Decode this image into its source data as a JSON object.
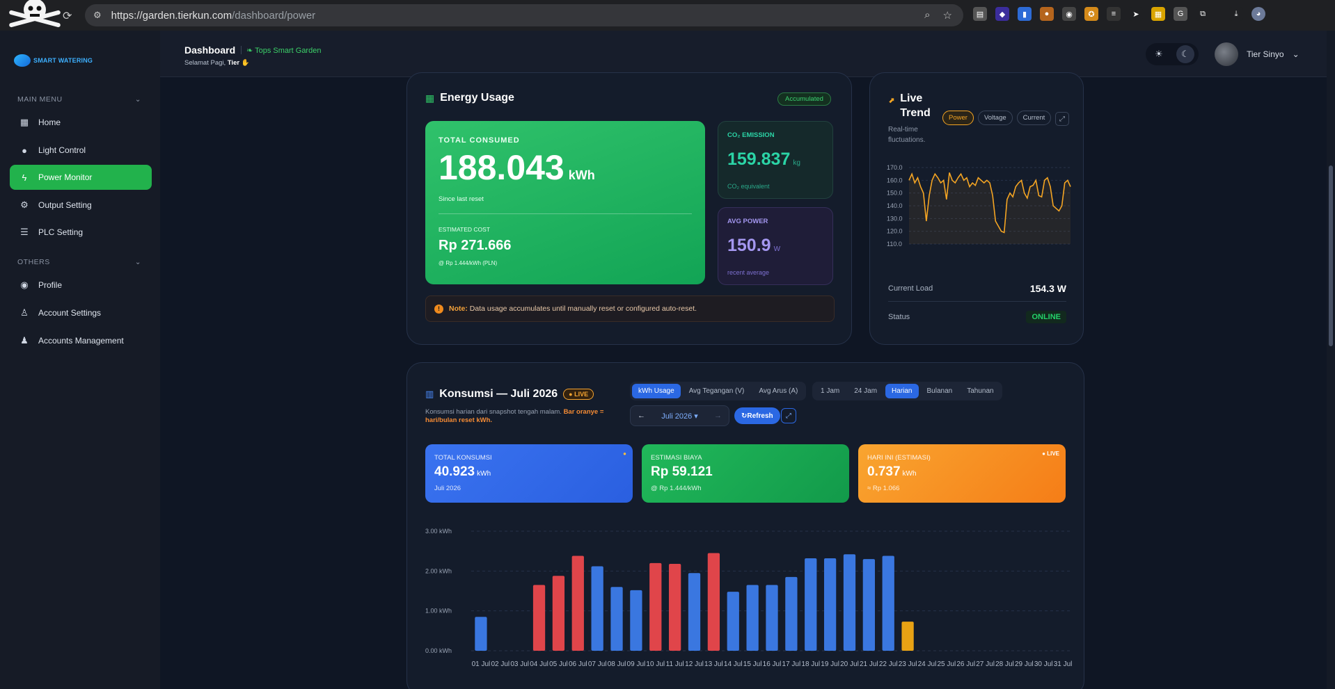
{
  "browser": {
    "url_host": "https://garden.tierkun.com",
    "url_path": "/dashboard/power"
  },
  "sidebar": {
    "brand": "SMART WATERING",
    "main_menu_label": "MAIN MENU",
    "others_label": "OTHERS",
    "items": [
      {
        "label": "Home",
        "icon": "dashboard-icon"
      },
      {
        "label": "Light Control",
        "icon": "bulb-icon"
      },
      {
        "label": "Power Monitor",
        "icon": "bolt-icon"
      },
      {
        "label": "Output Setting",
        "icon": "gear-icon"
      },
      {
        "label": "PLC Setting",
        "icon": "list-icon"
      },
      {
        "label": "Profile",
        "icon": "user-icon"
      },
      {
        "label": "Account Settings",
        "icon": "user-gear-icon"
      },
      {
        "label": "Accounts Management",
        "icon": "users-icon"
      }
    ]
  },
  "header": {
    "title": "Dashboard",
    "subtitle": "Tops Smart Garden",
    "greeting_prefix": "Selamat Pagi,",
    "greeting_name": "Tier",
    "username": "Tier Sinyo"
  },
  "energy": {
    "title": "Energy Usage",
    "badge": "Accumulated",
    "total_label": "TOTAL CONSUMED",
    "total_value": "188.043",
    "total_unit": "kWh",
    "since": "Since last reset",
    "cost_label": "ESTIMATED COST",
    "cost_value": "Rp 271.666",
    "cost_rate": "@ Rp 1.444/kWh (PLN)",
    "co2_label": "CO₂ EMISSION",
    "co2_value": "159.837",
    "co2_unit": "kg",
    "co2_note": "CO₂ equivalent",
    "avg_label": "AVG POWER",
    "avg_value": "150.9",
    "avg_unit": "W",
    "avg_note": "recent average",
    "note_label": "Note:",
    "note_text": "Data usage accumulates until manually reset or configured auto-reset."
  },
  "live": {
    "title": "Live Trend",
    "subtitle": "Real-time fluctuations.",
    "tabs": [
      "Power",
      "Voltage",
      "Current"
    ],
    "current_load_label": "Current Load",
    "current_load_value": "154.3 W",
    "status_label": "Status",
    "status_value": "ONLINE",
    "color": "#f5a523"
  },
  "konsumsi": {
    "title": "Konsumsi — Juli 2026",
    "live_badge": "LIVE",
    "desc": "Konsumsi harian dari snapshot tengah malam.",
    "desc_highlight": "Bar oranye = hari/bulan reset kWh.",
    "metric_tabs": [
      "kWh Usage",
      "Avg Tegangan (V)",
      "Avg Arus (A)"
    ],
    "range_tabs": [
      "1 Jam",
      "24 Jam",
      "Harian",
      "Bulanan",
      "Tahunan"
    ],
    "month": "Juli 2026",
    "refresh": "↻Refresh",
    "stats": {
      "total_label": "TOTAL KONSUMSI",
      "total_value": "40.923",
      "total_unit": "kWh",
      "total_note": "Juli 2026",
      "biaya_label": "ESTIMASI BIAYA",
      "biaya_value": "Rp 59.121",
      "biaya_note": "@ Rp 1.444/kWh",
      "hari_label": "HARI INI (ESTIMASI)",
      "hari_badge": "● LIVE",
      "hari_value": "0.737",
      "hari_unit": "kWh",
      "hari_note": "≈ Rp 1.066"
    }
  },
  "chart_data": [
    {
      "type": "line",
      "title": "Live Trend",
      "series": [
        {
          "name": "Power",
          "values": [
            160,
            165,
            158,
            162,
            155,
            150,
            128,
            148,
            160,
            165,
            162,
            158,
            160,
            145,
            166,
            160,
            158,
            162,
            165,
            160,
            162,
            155,
            158,
            156,
            162,
            160,
            158,
            160,
            158,
            148,
            128,
            124,
            120,
            119,
            145,
            150,
            147,
            155,
            158,
            160,
            150,
            146,
            155,
            156,
            160,
            148,
            147,
            160,
            162,
            155,
            140,
            138,
            136,
            140,
            158,
            160,
            155
          ]
        }
      ],
      "ylim": [
        110,
        170
      ],
      "yticks": [
        "170.0",
        "160.0",
        "150.0",
        "140.0",
        "130.0",
        "120.0",
        "110.0"
      ]
    },
    {
      "type": "bar",
      "title": "Konsumsi — Juli 2026",
      "categories": [
        "01 Jul",
        "02 Jul",
        "03 Jul",
        "04 Jul",
        "05 Jul",
        "06 Jul",
        "07 Jul",
        "08 Jul",
        "09 Jul",
        "10 Jul",
        "11 Jul",
        "12 Jul",
        "13 Jul",
        "14 Jul",
        "15 Jul",
        "16 Jul",
        "17 Jul",
        "18 Jul",
        "19 Jul",
        "20 Jul",
        "21 Jul",
        "22 Jul",
        "23 Jul",
        "24 Jul",
        "25 Jul",
        "26 Jul",
        "27 Jul",
        "28 Jul",
        "29 Jul",
        "30 Jul",
        "31 Jul"
      ],
      "values": [
        0.85,
        0,
        0,
        1.65,
        1.88,
        2.38,
        2.12,
        1.6,
        1.52,
        2.2,
        2.18,
        1.95,
        2.45,
        1.48,
        1.65,
        1.65,
        1.85,
        2.32,
        2.32,
        2.42,
        2.3,
        2.38,
        0.73,
        0,
        0,
        0,
        0,
        0,
        0,
        0,
        0
      ],
      "bar_colors": [
        "#3a77e0",
        "#3a77e0",
        "#3a77e0",
        "#e0454a",
        "#e0454a",
        "#e0454a",
        "#3a77e0",
        "#3a77e0",
        "#3a77e0",
        "#e0454a",
        "#e0454a",
        "#3a77e0",
        "#e0454a",
        "#3a77e0",
        "#3a77e0",
        "#3a77e0",
        "#3a77e0",
        "#3a77e0",
        "#3a77e0",
        "#3a77e0",
        "#3a77e0",
        "#3a77e0",
        "#e8a214",
        "#3a77e0",
        "#3a77e0",
        "#3a77e0",
        "#3a77e0",
        "#3a77e0",
        "#3a77e0",
        "#3a77e0",
        "#3a77e0"
      ],
      "xtick_labels": [
        "01 Jul",
        "02 Jul",
        "03 Jul",
        "04 Jul",
        "05 Jul",
        "06 Jul",
        "07 Jul",
        "08 Jul",
        "09 Jul",
        "10 Jul",
        "11 Jul",
        "12 Jul",
        "13 Jul",
        "14 Jul",
        "15 Jul",
        "16 Jul",
        "17 Jul",
        "18 Jul",
        "19 Jul",
        "20 Jul",
        "21 Jul",
        "22 Jul",
        "23 Jul",
        "24 Jul",
        "25 Jul",
        "26 Jul",
        "27 Jul",
        "28 Jul",
        "29 Jul",
        "30 Jul",
        "31 Jul"
      ],
      "ylim": [
        0,
        3
      ],
      "yticks": [
        "3.00 kWh",
        "2.00 kWh",
        "1.00 kWh",
        "0.00 kWh"
      ],
      "grid": true
    }
  ]
}
